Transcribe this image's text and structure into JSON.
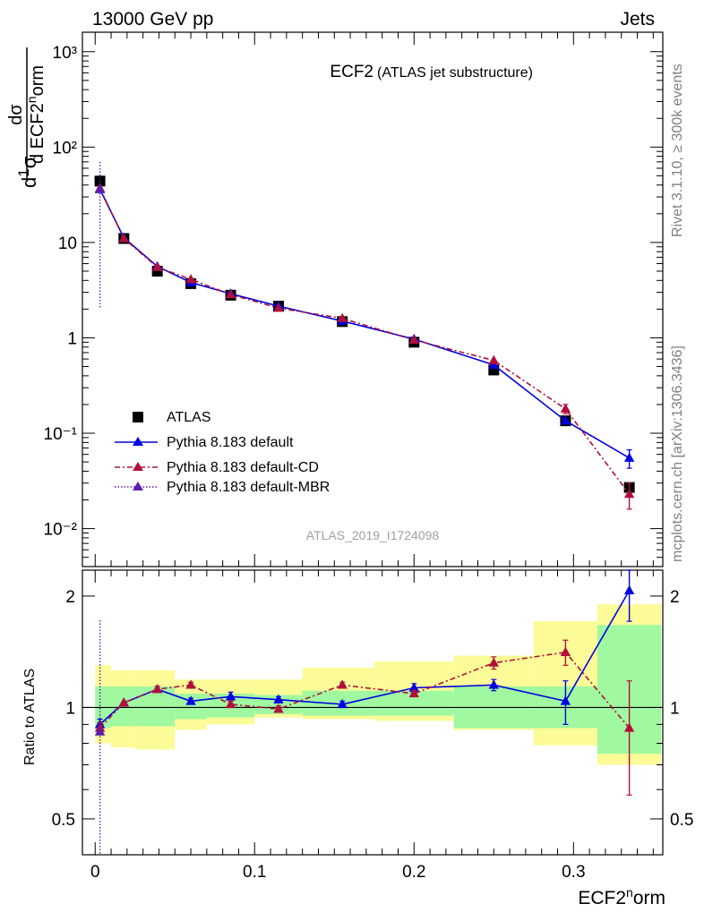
{
  "header": {
    "left": "13000 GeV pp",
    "right": "Jets",
    "title": "ECF2",
    "subtitle": "(ATLAS jet substructure)",
    "analysis": "ATLAS_2019_I1724098"
  },
  "side_labels": {
    "top": "Rivet 3.1.10, ≥ 300k events",
    "bottom": "mcplots.cern.ch [arXiv:1306.3436]"
  },
  "colors": {
    "atlas": "#000000",
    "default": "#0000e0",
    "cd": "#b0103a",
    "mbr": "#5a1eb4",
    "band_inner": "#a0f8a0",
    "band_outer": "#fbfb97"
  },
  "chart_data": [
    {
      "type": "scatter",
      "panel": "main",
      "yscale": "log",
      "ylim": [
        0.004,
        1600
      ],
      "xlim": [
        -0.008,
        0.356
      ],
      "ylabel": "1/σ dσ/d ECF2norm",
      "yticks": [
        {
          "value": 0.01,
          "label": "10⁻²"
        },
        {
          "value": 0.1,
          "label": "10⁻¹"
        },
        {
          "value": 1,
          "label": "1"
        },
        {
          "value": 10,
          "label": "10"
        },
        {
          "value": 100,
          "label": "10²"
        },
        {
          "value": 1000,
          "label": "10³"
        }
      ],
      "legend": [
        {
          "key": "atlas",
          "label": "ATLAS"
        },
        {
          "key": "default",
          "label": "Pythia 8.183 default"
        },
        {
          "key": "cd",
          "label": "Pythia 8.183 default-CD"
        },
        {
          "key": "mbr",
          "label": "Pythia 8.183 default-MBR"
        }
      ],
      "legend_position": "bottom-left",
      "x": [
        0.003,
        0.018,
        0.039,
        0.06,
        0.085,
        0.115,
        0.155,
        0.2,
        0.25,
        0.295,
        0.335
      ],
      "x_low": [
        0.0,
        0.01,
        0.025,
        0.05,
        0.07,
        0.1,
        0.13,
        0.175,
        0.225,
        0.275,
        0.315
      ],
      "x_high": [
        0.01,
        0.025,
        0.05,
        0.07,
        0.1,
        0.13,
        0.175,
        0.225,
        0.275,
        0.315,
        0.355
      ],
      "series": [
        {
          "key": "atlas",
          "name": "ATLAS",
          "values": [
            44,
            11,
            5.0,
            3.7,
            2.8,
            2.15,
            1.48,
            0.9,
            0.46,
            0.135,
            0.027
          ]
        },
        {
          "key": "default",
          "name": "Pythia 8.183 default",
          "values": [
            36,
            11.2,
            5.6,
            3.8,
            2.9,
            2.15,
            1.5,
            0.97,
            0.52,
            0.135,
            0.055
          ],
          "err": [
            0,
            0,
            0,
            0,
            0,
            0,
            0,
            0,
            0,
            0,
            0.012
          ]
        },
        {
          "key": "cd",
          "name": "Pythia 8.183 default-CD",
          "values": [
            37,
            11.0,
            5.5,
            4.1,
            2.85,
            2.05,
            1.6,
            0.95,
            0.58,
            0.18,
            0.023
          ],
          "err": [
            0,
            0,
            0,
            0,
            0,
            0,
            0,
            0,
            0,
            0.02,
            0.007
          ]
        },
        {
          "key": "mbr",
          "name": "Pythia 8.183 default-MBR",
          "values": [
            36,
            null,
            null,
            null,
            null,
            null,
            null,
            null,
            null,
            null,
            null
          ],
          "err": [
            34,
            0,
            0,
            0,
            0,
            0,
            0,
            0,
            0,
            0,
            0
          ]
        }
      ]
    },
    {
      "type": "scatter",
      "panel": "ratio",
      "yscale": "log",
      "ylim": [
        0.4,
        2.35
      ],
      "ylabel": "Ratio to ATLAS",
      "xlabel": "ECF2norm",
      "yticks": [
        {
          "value": 0.5,
          "label": "0.5"
        },
        {
          "value": 1,
          "label": "1"
        },
        {
          "value": 2,
          "label": "2"
        }
      ],
      "xticks": [
        {
          "value": 0,
          "label": "0"
        },
        {
          "value": 0.1,
          "label": "0.1"
        },
        {
          "value": 0.2,
          "label": "0.2"
        },
        {
          "value": 0.3,
          "label": "0.3"
        }
      ],
      "bands": {
        "inner_low": [
          0.88,
          0.89,
          0.89,
          0.93,
          0.94,
          0.96,
          0.95,
          0.95,
          0.88,
          0.88,
          0.75
        ],
        "inner_high": [
          1.14,
          1.14,
          1.14,
          1.09,
          1.09,
          1.08,
          1.11,
          1.11,
          1.14,
          1.14,
          1.67
        ],
        "outer_low": [
          0.8,
          0.78,
          0.77,
          0.87,
          0.9,
          0.94,
          0.93,
          0.92,
          0.87,
          0.79,
          0.7
        ],
        "outer_high": [
          1.3,
          1.26,
          1.26,
          1.19,
          1.19,
          1.19,
          1.28,
          1.33,
          1.38,
          1.71,
          1.9
        ]
      },
      "series": [
        {
          "key": "default",
          "name": "Pythia 8.183 default",
          "values": [
            0.9,
            1.03,
            1.12,
            1.04,
            1.07,
            1.05,
            1.02,
            1.13,
            1.15,
            1.04,
            2.07
          ],
          "err": [
            0.03,
            0,
            0.02,
            0.02,
            0.03,
            0.02,
            0.02,
            0.03,
            0.04,
            0.14,
            0.36
          ]
        },
        {
          "key": "cd",
          "name": "Pythia 8.183 default-CD",
          "values": [
            0.88,
            1.03,
            1.12,
            1.15,
            1.02,
            0.99,
            1.15,
            1.09,
            1.32,
            1.41,
            0.88
          ],
          "err": [
            0.03,
            0,
            0.02,
            0.02,
            0.02,
            0.02,
            0.02,
            0.02,
            0.05,
            0.11,
            0.3
          ]
        },
        {
          "key": "mbr",
          "name": "Pythia 8.183 default-MBR",
          "values": [
            0.86,
            null,
            null,
            null,
            null,
            null,
            null,
            null,
            null,
            null,
            null
          ],
          "err": [
            0.86,
            0,
            0,
            0,
            0,
            0,
            0,
            0,
            0,
            0,
            0
          ]
        }
      ]
    }
  ]
}
